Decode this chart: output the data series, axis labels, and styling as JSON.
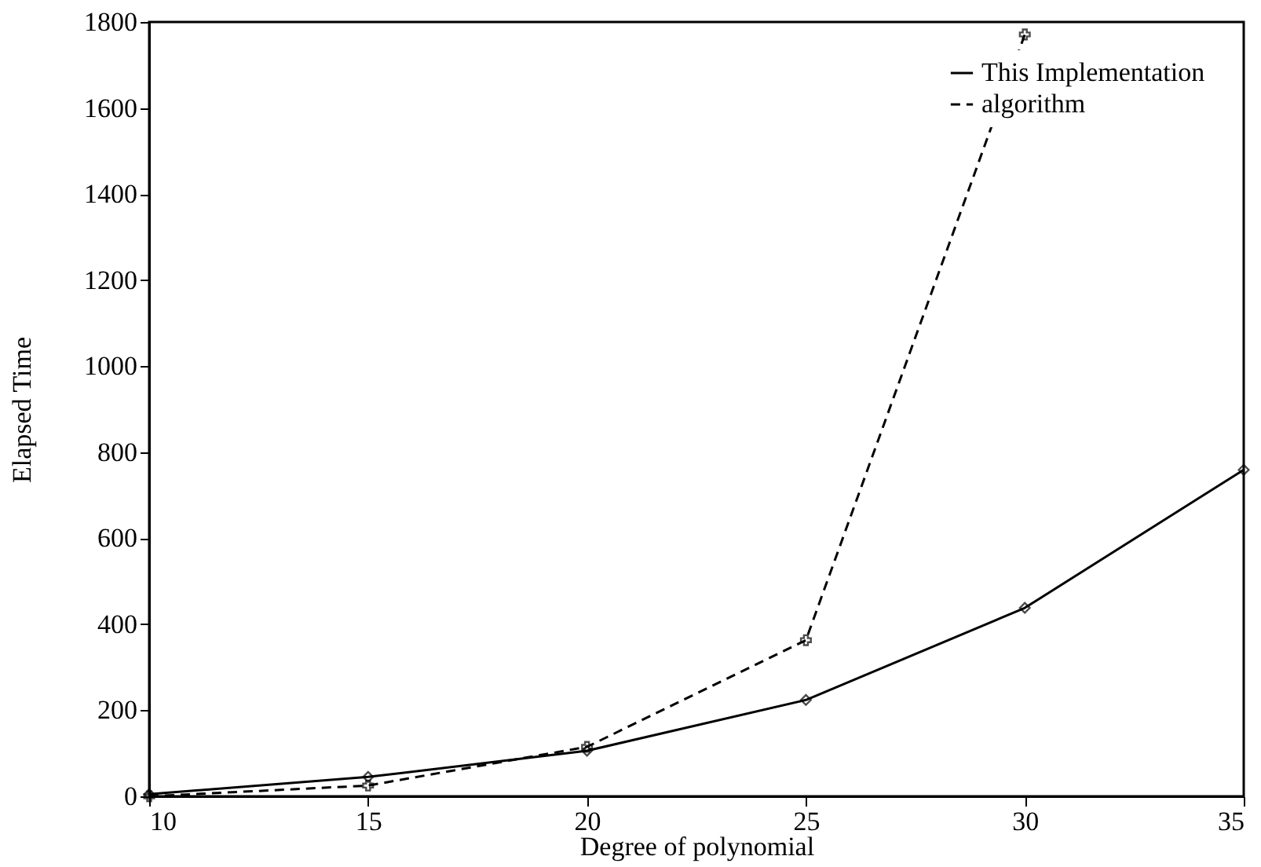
{
  "chart_data": {
    "type": "line",
    "xlabel": "Degree of polynomial",
    "ylabel": "Elapsed Time",
    "x": [
      10,
      15,
      20,
      25,
      30,
      35
    ],
    "series": [
      {
        "name": "This Implementation",
        "color": "#000000",
        "values": [
          5,
          45,
          106,
          224,
          438,
          759
        ],
        "marker": "diamond",
        "line_style": "solid"
      },
      {
        "name": "algorithm",
        "color": "#000000",
        "x": [
          10,
          15,
          20,
          25,
          30
        ],
        "values": [
          0,
          25,
          115,
          363,
          1771
        ],
        "marker": "cross",
        "line_style": "dashed"
      }
    ],
    "xlim": [
      10,
      35
    ],
    "xticks": [
      10,
      15,
      20,
      25,
      30,
      35
    ],
    "ylim": [
      0,
      1800
    ],
    "yticks": [
      0,
      200,
      400,
      600,
      800,
      1000,
      1200,
      1400,
      1600,
      1800
    ],
    "grid": false,
    "legend": "top right"
  }
}
